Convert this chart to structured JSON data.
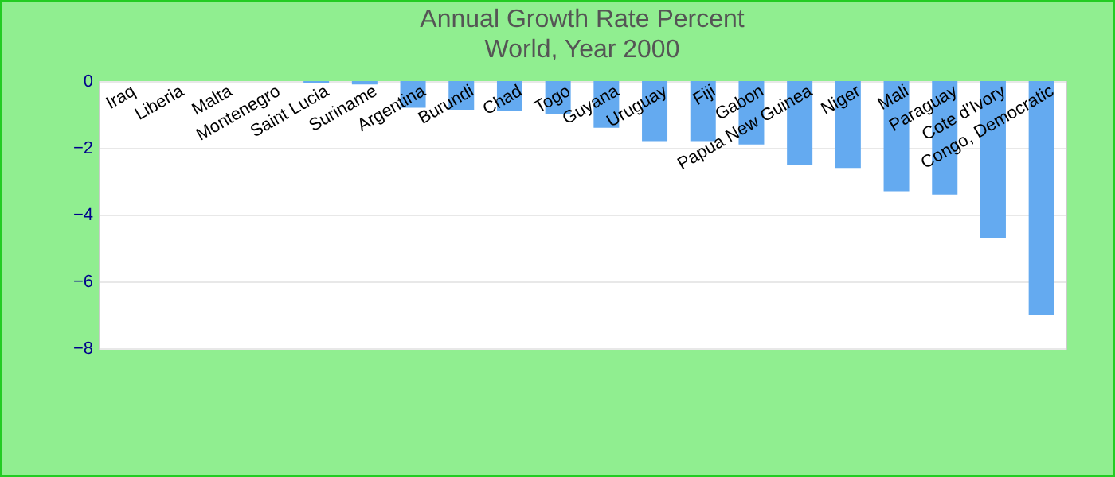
{
  "chart_data": {
    "type": "bar",
    "title": "Annual Growth Rate  Percent",
    "subtitle": "World, Year 2000",
    "categories": [
      "Iraq",
      "Liberia",
      "Malta",
      "Montenegro",
      "Saint Lucia",
      "Suriname",
      "Argentina",
      "Burundi",
      "Chad",
      "Togo",
      "Guyana",
      "Uruguay",
      "Fiji",
      "Gabon",
      "Papua New Guinea",
      "Niger",
      "Mali",
      "Paraguay",
      "Cote d'Ivory",
      "Congo, Democratic"
    ],
    "values": [
      0,
      0,
      0,
      0,
      -0.05,
      -0.1,
      -0.8,
      -0.86,
      -0.9,
      -1.0,
      -1.4,
      -1.8,
      -1.8,
      -1.9,
      -2.5,
      -2.6,
      -3.3,
      -3.4,
      -4.7,
      -7.0
    ],
    "color": "#64aaf0",
    "ylim": [
      -8,
      0
    ],
    "yticks": [
      -8,
      -6,
      -4,
      -2,
      0
    ],
    "grid": "y"
  }
}
